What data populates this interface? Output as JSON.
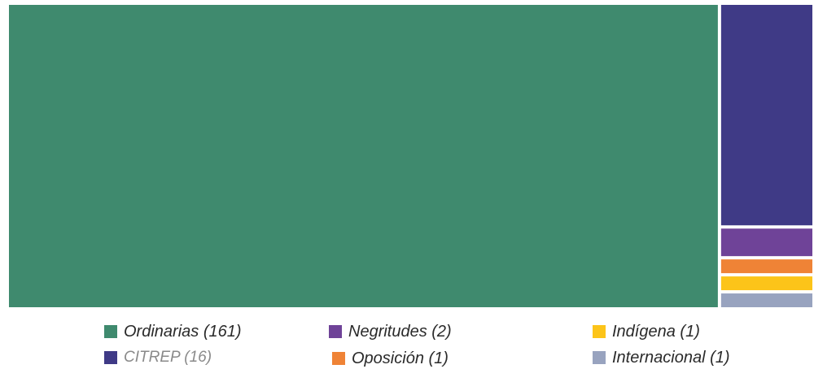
{
  "chart_data": {
    "type": "treemap",
    "unit": "",
    "series": [
      {
        "name": "Ordinarias",
        "label": "Ordinarias (161)",
        "value": 161,
        "color": "#3f8a6e"
      },
      {
        "name": "CITREP",
        "label": "CITREP (16)",
        "value": 16,
        "color": "#3f3a86"
      },
      {
        "name": "Negritudes",
        "label": "Negritudes (2)",
        "value": 2,
        "color": "#6f4398"
      },
      {
        "name": "Oposición",
        "label": "Oposición (1)",
        "value": 1,
        "color": "#ef8336"
      },
      {
        "name": "Indígena",
        "label": "Indígena (1)",
        "value": 1,
        "color": "#fcc419"
      },
      {
        "name": "Internacional",
        "label": "Internacional (1)",
        "value": 1,
        "color": "#98a3bf"
      }
    ]
  }
}
